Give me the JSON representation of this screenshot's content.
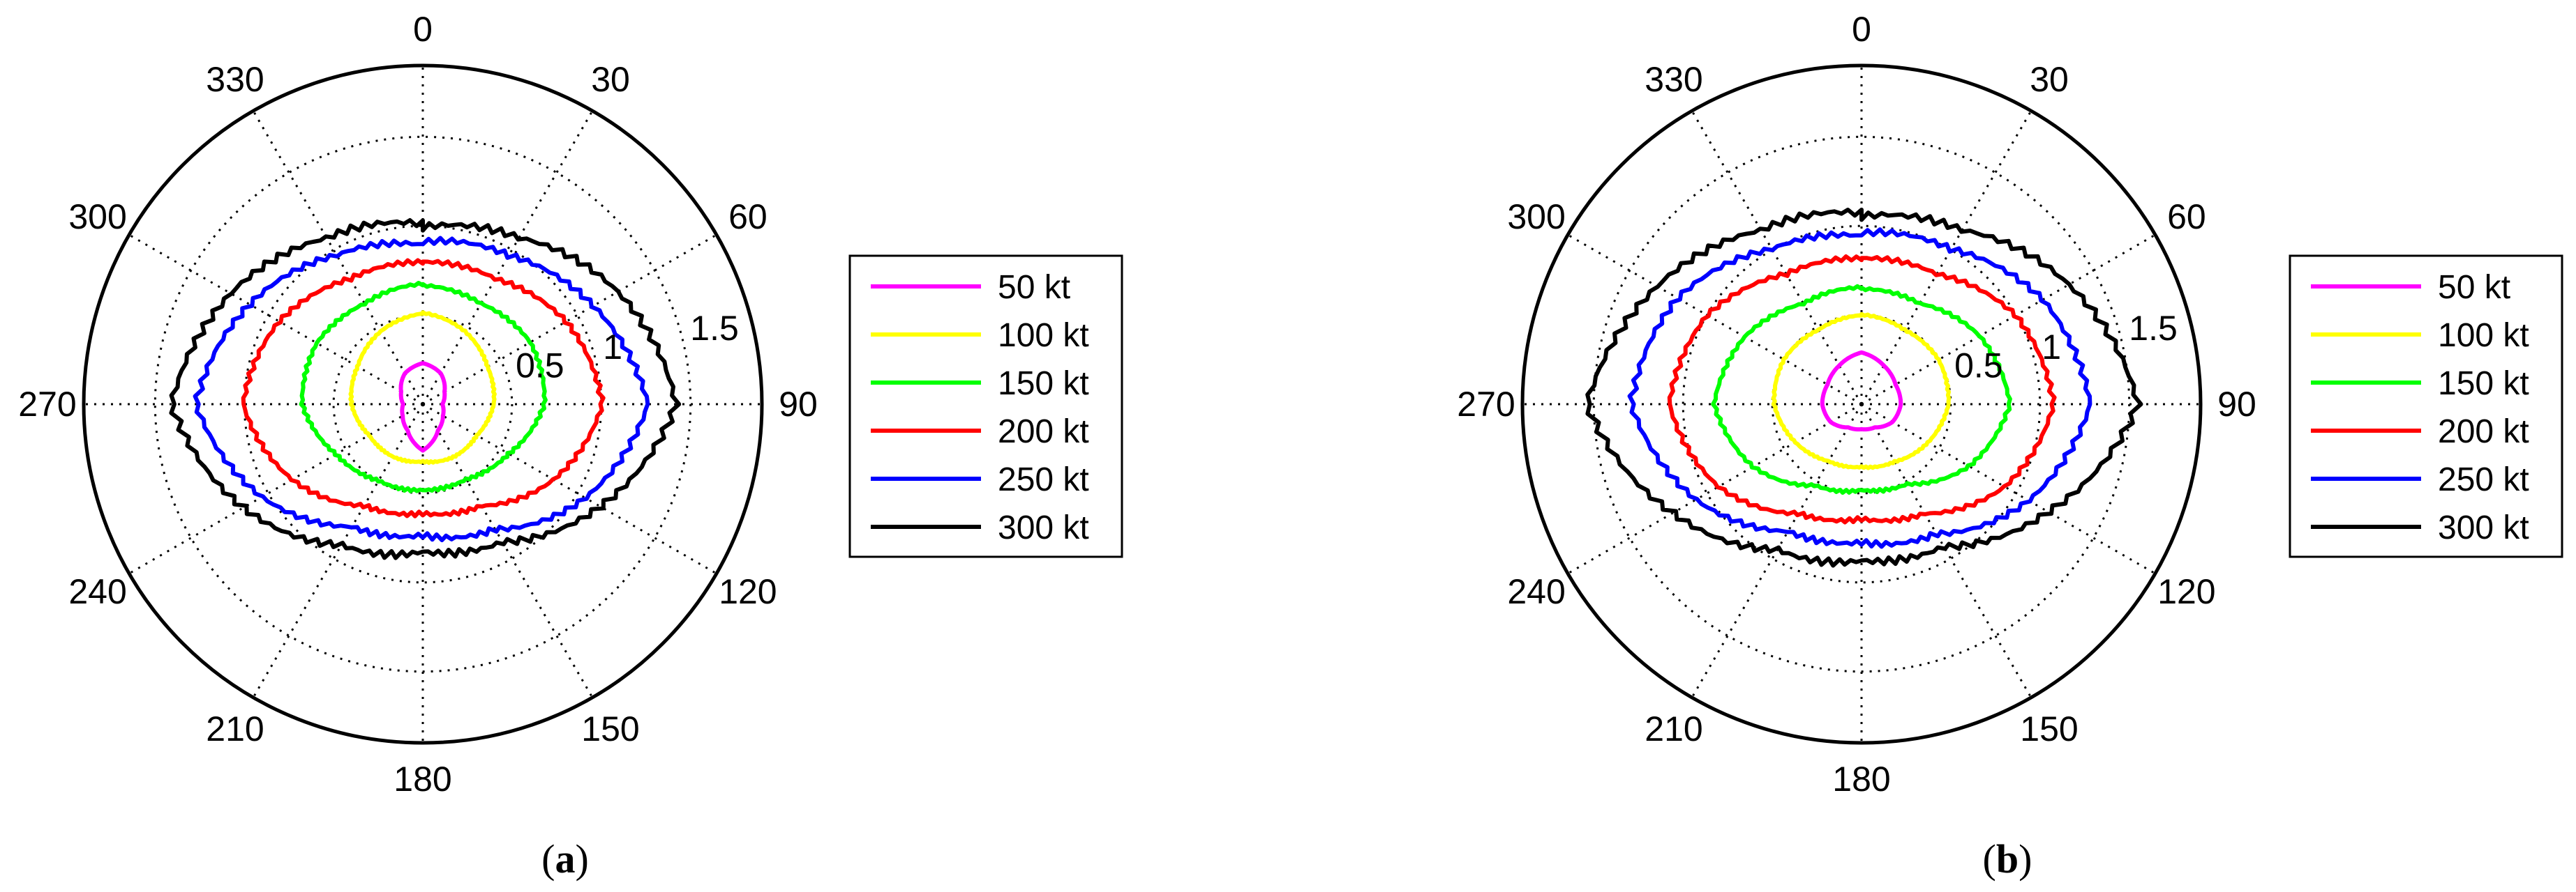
{
  "chart_data": [
    {
      "type": "line",
      "subtype": "polar",
      "panel_label": "a",
      "angle_ticks": [
        "0",
        "30",
        "60",
        "90",
        "120",
        "150",
        "180",
        "210",
        "240",
        "270",
        "300",
        "330"
      ],
      "radial_ticks": [
        "0.5",
        "1",
        "1.5"
      ],
      "rlim": [
        0,
        1.9
      ],
      "theta_direction": "clockwise",
      "theta_zero": "top",
      "grid": true,
      "legend_position": "right",
      "series": [
        {
          "name": "50 kt",
          "color": "#ff00ff",
          "profile": [
            [
              0,
              0.23
            ],
            [
              30,
              0.2
            ],
            [
              60,
              0.14
            ],
            [
              90,
              0.11
            ],
            [
              120,
              0.13
            ],
            [
              150,
              0.17
            ],
            [
              180,
              0.26
            ],
            [
              210,
              0.17
            ],
            [
              240,
              0.13
            ],
            [
              270,
              0.11
            ],
            [
              300,
              0.14
            ],
            [
              330,
              0.2
            ]
          ]
        },
        {
          "name": "100 kt",
          "color": "#ffff00",
          "profile": [
            [
              0,
              0.51
            ],
            [
              30,
              0.47
            ],
            [
              60,
              0.42
            ],
            [
              90,
              0.4
            ],
            [
              120,
              0.35
            ],
            [
              150,
              0.34
            ],
            [
              180,
              0.32
            ],
            [
              210,
              0.34
            ],
            [
              240,
              0.35
            ],
            [
              270,
              0.4
            ],
            [
              300,
              0.42
            ],
            [
              330,
              0.47
            ]
          ]
        },
        {
          "name": "150 kt",
          "color": "#00ff00",
          "profile": [
            [
              0,
              0.67
            ],
            [
              30,
              0.65
            ],
            [
              60,
              0.69
            ],
            [
              90,
              0.68
            ],
            [
              120,
              0.56
            ],
            [
              150,
              0.49
            ],
            [
              180,
              0.48
            ],
            [
              210,
              0.49
            ],
            [
              240,
              0.56
            ],
            [
              270,
              0.68
            ],
            [
              300,
              0.69
            ],
            [
              330,
              0.65
            ]
          ]
        },
        {
          "name": "200 kt",
          "color": "#ff0000",
          "profile": [
            [
              0,
              0.8
            ],
            [
              30,
              0.82
            ],
            [
              60,
              0.93
            ],
            [
              90,
              1.0
            ],
            [
              120,
              0.84
            ],
            [
              150,
              0.66
            ],
            [
              180,
              0.62
            ],
            [
              210,
              0.66
            ],
            [
              240,
              0.84
            ],
            [
              270,
              1.0
            ],
            [
              300,
              0.93
            ],
            [
              330,
              0.82
            ]
          ]
        },
        {
          "name": "250 kt",
          "color": "#0000ff",
          "profile": [
            [
              0,
              0.9
            ],
            [
              30,
              0.96
            ],
            [
              60,
              1.11
            ],
            [
              90,
              1.27
            ],
            [
              120,
              1.05
            ],
            [
              150,
              0.8
            ],
            [
              180,
              0.73
            ],
            [
              210,
              0.8
            ],
            [
              240,
              1.05
            ],
            [
              270,
              1.27
            ],
            [
              300,
              1.11
            ],
            [
              330,
              0.96
            ]
          ]
        },
        {
          "name": "300 kt",
          "color": "#000000",
          "profile": [
            [
              0,
              1.0
            ],
            [
              30,
              1.07
            ],
            [
              60,
              1.25
            ],
            [
              90,
              1.42
            ],
            [
              120,
              1.16
            ],
            [
              150,
              0.9
            ],
            [
              180,
              0.82
            ],
            [
              210,
              0.9
            ],
            [
              240,
              1.16
            ],
            [
              270,
              1.42
            ],
            [
              300,
              1.25
            ],
            [
              330,
              1.07
            ]
          ]
        }
      ]
    },
    {
      "type": "line",
      "subtype": "polar",
      "panel_label": "b",
      "angle_ticks": [
        "0",
        "30",
        "60",
        "90",
        "120",
        "150",
        "180",
        "210",
        "240",
        "270",
        "300",
        "330"
      ],
      "radial_ticks": [
        "0.5",
        "1",
        "1.5"
      ],
      "rlim": [
        0,
        1.9
      ],
      "theta_direction": "clockwise",
      "theta_zero": "top",
      "grid": true,
      "legend_position": "right",
      "series": [
        {
          "name": "50 kt",
          "color": "#ff00ff",
          "profile": [
            [
              0,
              0.29
            ],
            [
              30,
              0.25
            ],
            [
              60,
              0.22
            ],
            [
              90,
              0.22
            ],
            [
              120,
              0.2
            ],
            [
              150,
              0.15
            ],
            [
              180,
              0.14
            ],
            [
              210,
              0.15
            ],
            [
              240,
              0.2
            ],
            [
              270,
              0.22
            ],
            [
              300,
              0.22
            ],
            [
              330,
              0.25
            ]
          ]
        },
        {
          "name": "100 kt",
          "color": "#ffff00",
          "profile": [
            [
              0,
              0.5
            ],
            [
              30,
              0.48
            ],
            [
              60,
              0.5
            ],
            [
              90,
              0.49
            ],
            [
              120,
              0.43
            ],
            [
              150,
              0.37
            ],
            [
              180,
              0.35
            ],
            [
              210,
              0.37
            ],
            [
              240,
              0.43
            ],
            [
              270,
              0.49
            ],
            [
              300,
              0.5
            ],
            [
              330,
              0.48
            ]
          ]
        },
        {
          "name": "150 kt",
          "color": "#00ff00",
          "profile": [
            [
              0,
              0.65
            ],
            [
              30,
              0.65
            ],
            [
              60,
              0.76
            ],
            [
              90,
              0.83
            ],
            [
              120,
              0.7
            ],
            [
              150,
              0.52
            ],
            [
              180,
              0.48
            ],
            [
              210,
              0.52
            ],
            [
              240,
              0.7
            ],
            [
              270,
              0.83
            ],
            [
              300,
              0.76
            ],
            [
              330,
              0.65
            ]
          ]
        },
        {
          "name": "200 kt",
          "color": "#ff0000",
          "profile": [
            [
              0,
              0.82
            ],
            [
              30,
              0.85
            ],
            [
              60,
              1.0
            ],
            [
              90,
              1.07
            ],
            [
              120,
              0.92
            ],
            [
              150,
              0.71
            ],
            [
              180,
              0.65
            ],
            [
              210,
              0.71
            ],
            [
              240,
              0.92
            ],
            [
              270,
              1.07
            ],
            [
              300,
              1.0
            ],
            [
              330,
              0.85
            ]
          ]
        },
        {
          "name": "250 kt",
          "color": "#0000ff",
          "profile": [
            [
              0,
              0.95
            ],
            [
              30,
              1.0
            ],
            [
              60,
              1.18
            ],
            [
              90,
              1.29
            ],
            [
              120,
              1.08
            ],
            [
              150,
              0.83
            ],
            [
              180,
              0.77
            ],
            [
              210,
              0.83
            ],
            [
              240,
              1.08
            ],
            [
              270,
              1.29
            ],
            [
              300,
              1.18
            ],
            [
              330,
              1.0
            ]
          ]
        },
        {
          "name": "300 kt",
          "color": "#000000",
          "profile": [
            [
              0,
              1.06
            ],
            [
              30,
              1.12
            ],
            [
              60,
              1.33
            ],
            [
              90,
              1.55
            ],
            [
              120,
              1.22
            ],
            [
              150,
              0.93
            ],
            [
              180,
              0.87
            ],
            [
              210,
              0.93
            ],
            [
              240,
              1.22
            ],
            [
              270,
              1.55
            ],
            [
              300,
              1.33
            ],
            [
              330,
              1.12
            ]
          ]
        }
      ]
    }
  ]
}
